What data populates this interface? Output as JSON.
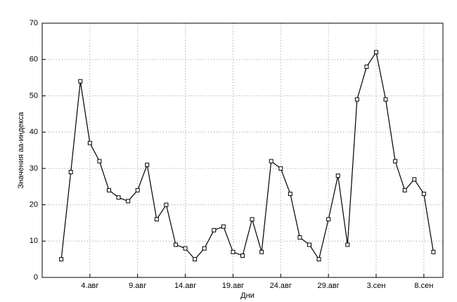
{
  "chart_data": {
    "type": "line",
    "xlabel": "Дни",
    "ylabel": "Значения аа-индекса",
    "categories": [
      null,
      null,
      null,
      "4.авг",
      null,
      null,
      null,
      null,
      "9.авг",
      null,
      null,
      null,
      null,
      "14.авг",
      null,
      null,
      null,
      null,
      "19.авг",
      null,
      null,
      null,
      null,
      "24.авг",
      null,
      null,
      null,
      null,
      "29.авг",
      null,
      null,
      null,
      null,
      "3.сен",
      null,
      null,
      null,
      null,
      "8.сен",
      null
    ],
    "series": [
      {
        "name": "aa",
        "color": "#000000",
        "values": [
          5,
          29,
          54,
          37,
          32,
          24,
          22,
          21,
          24,
          31,
          16,
          20,
          9,
          8,
          5,
          8,
          13,
          14,
          7,
          6,
          16,
          7,
          32,
          30,
          23,
          11,
          9,
          5,
          16,
          28,
          9,
          49,
          58,
          62,
          49,
          32,
          24,
          27,
          23,
          7
        ]
      }
    ],
    "ylim": [
      0,
      70
    ],
    "yticks": [
      0,
      10,
      20,
      30,
      40,
      50,
      60,
      70
    ],
    "grid": true
  }
}
